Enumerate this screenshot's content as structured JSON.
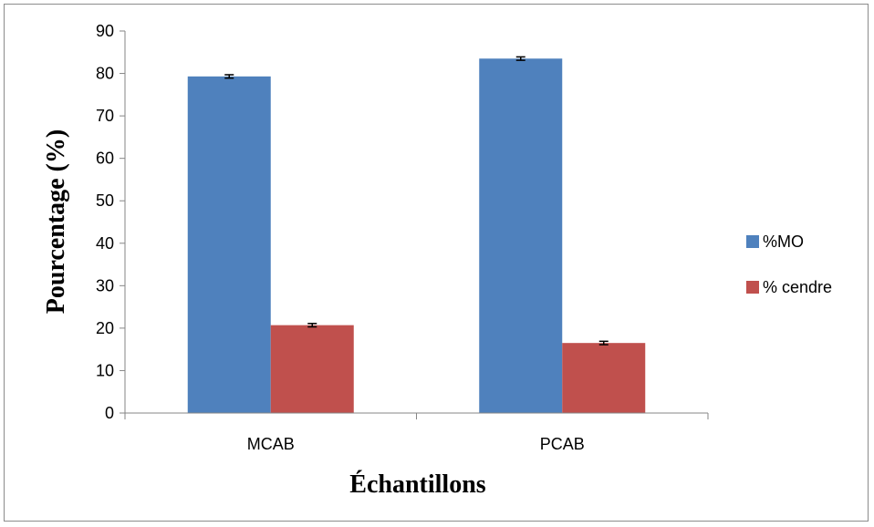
{
  "chart_data": {
    "type": "bar",
    "categories": [
      "MCAB",
      "PCAB"
    ],
    "series": [
      {
        "name": "%MO",
        "values": [
          79.3,
          83.5
        ],
        "errors": [
          0.4,
          0.4
        ],
        "color": "#4F81BD"
      },
      {
        "name": "% cendre",
        "values": [
          20.7,
          16.5
        ],
        "errors": [
          0.4,
          0.4
        ],
        "color": "#C0504D"
      }
    ],
    "title": "",
    "xlabel": "Échantillons",
    "ylabel": "Pourcentage (%)",
    "ylim": [
      0,
      90
    ],
    "yticks": [
      0,
      10,
      20,
      30,
      40,
      50,
      60,
      70,
      80,
      90
    ],
    "grid": false,
    "legend_position": "right"
  }
}
